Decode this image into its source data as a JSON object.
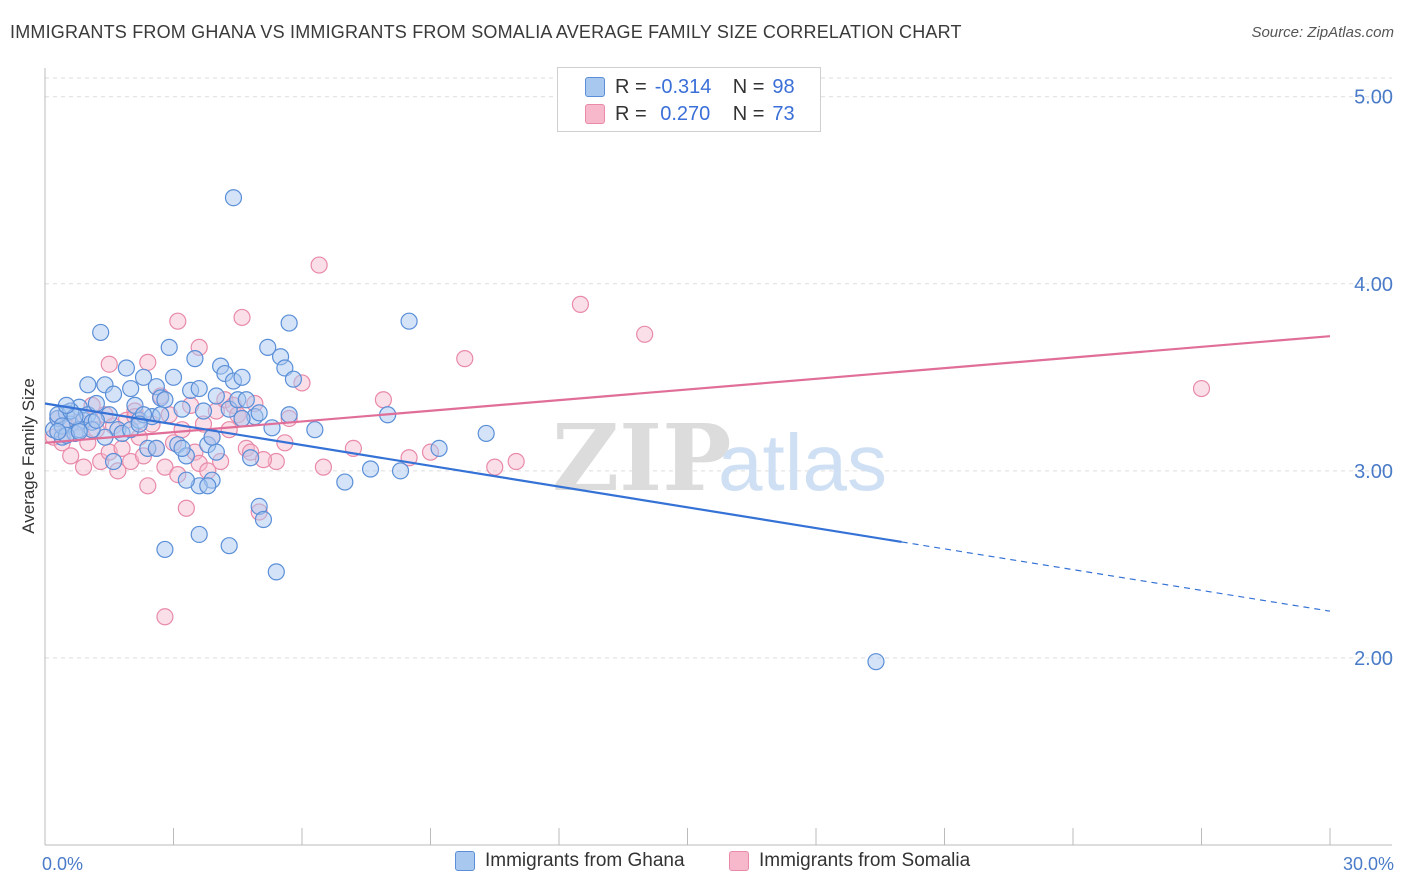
{
  "title": "IMMIGRANTS FROM GHANA VS IMMIGRANTS FROM SOMALIA AVERAGE FAMILY SIZE CORRELATION CHART",
  "source": "Source: ZipAtlas.com",
  "watermark": {
    "zip": "ZIP",
    "atlas": "atlas"
  },
  "legend": {
    "rows": [
      {
        "r_label": "R =",
        "r_value": "-0.314",
        "n_label": "N =",
        "n_value": "98"
      },
      {
        "r_label": "R =",
        "r_value": " 0.270",
        "n_label": "N =",
        "n_value": "73"
      }
    ]
  },
  "bottom_legend": {
    "ghana": "Immigrants from Ghana",
    "somalia": "Immigrants from Somalia"
  },
  "colors": {
    "ghana_fill": "#a9c8f0",
    "ghana_stroke": "#5a8fd8",
    "ghana_line": "#3572d6",
    "somalia_fill": "#f7b8cc",
    "somalia_stroke": "#e88aa8",
    "somalia_line": "#e06e98",
    "tick": "#4a7bc8"
  },
  "chart_data": {
    "type": "scatter",
    "title": "IMMIGRANTS FROM GHANA VS IMMIGRANTS FROM SOMALIA AVERAGE FAMILY SIZE CORRELATION CHART",
    "xlabel": "",
    "ylabel": "Average Family Size",
    "xlim": [
      0,
      30
    ],
    "ylim": [
      1.0,
      5.2
    ],
    "x_tick_labels": [
      {
        "value": 0,
        "label": "0.0%"
      },
      {
        "value": 30,
        "label": "30.0%"
      }
    ],
    "y_tick_labels": [
      {
        "value": 2,
        "label": "2.00"
      },
      {
        "value": 3,
        "label": "3.00"
      },
      {
        "value": 4,
        "label": "4.00"
      },
      {
        "value": 5,
        "label": "5.00"
      }
    ],
    "series": [
      {
        "name": "Immigrants from Ghana",
        "R": -0.314,
        "N": 98,
        "trend": {
          "x0": 0,
          "y0": 3.36,
          "x1": 20.0,
          "y1": 2.62,
          "dash_to_x": 30,
          "dash_to_y": 2.25
        },
        "points": [
          [
            0.2,
            3.22
          ],
          [
            0.3,
            3.28
          ],
          [
            0.4,
            3.18
          ],
          [
            0.5,
            3.31
          ],
          [
            0.6,
            3.25
          ],
          [
            0.7,
            3.2
          ],
          [
            0.8,
            3.34
          ],
          [
            0.9,
            3.27
          ],
          [
            0.3,
            3.3
          ],
          [
            0.4,
            3.24
          ],
          [
            0.6,
            3.32
          ],
          [
            0.8,
            3.22
          ],
          [
            1.0,
            3.3
          ],
          [
            1.1,
            3.26
          ],
          [
            0.5,
            3.19
          ],
          [
            0.7,
            3.29
          ],
          [
            1.0,
            3.46
          ],
          [
            1.2,
            3.36
          ],
          [
            1.3,
            3.74
          ],
          [
            1.4,
            3.46
          ],
          [
            1.5,
            3.3
          ],
          [
            1.6,
            3.41
          ],
          [
            1.7,
            3.22
          ],
          [
            1.8,
            3.2
          ],
          [
            1.9,
            3.55
          ],
          [
            2.0,
            3.22
          ],
          [
            2.1,
            3.35
          ],
          [
            2.2,
            3.27
          ],
          [
            2.3,
            3.5
          ],
          [
            2.4,
            3.12
          ],
          [
            2.5,
            3.29
          ],
          [
            2.6,
            3.45
          ],
          [
            2.7,
            3.39
          ],
          [
            2.8,
            3.38
          ],
          [
            2.9,
            3.66
          ],
          [
            3.0,
            3.5
          ],
          [
            3.1,
            3.14
          ],
          [
            3.2,
            3.33
          ],
          [
            3.3,
            3.08
          ],
          [
            3.4,
            3.43
          ],
          [
            3.5,
            3.6
          ],
          [
            3.6,
            3.44
          ],
          [
            3.7,
            3.32
          ],
          [
            3.8,
            3.14
          ],
          [
            3.9,
            2.95
          ],
          [
            4.0,
            3.1
          ],
          [
            3.2,
            3.12
          ],
          [
            3.6,
            2.92
          ],
          [
            3.3,
            2.95
          ],
          [
            2.7,
            3.3
          ],
          [
            4.1,
            3.56
          ],
          [
            4.2,
            3.52
          ],
          [
            4.3,
            3.33
          ],
          [
            4.4,
            3.48
          ],
          [
            4.5,
            3.38
          ],
          [
            4.6,
            3.5
          ],
          [
            4.7,
            3.38
          ],
          [
            4.8,
            3.07
          ],
          [
            4.9,
            3.29
          ],
          [
            5.0,
            2.81
          ],
          [
            5.1,
            2.74
          ],
          [
            5.2,
            3.66
          ],
          [
            5.3,
            3.23
          ],
          [
            5.4,
            2.46
          ],
          [
            5.5,
            3.61
          ],
          [
            5.6,
            3.55
          ],
          [
            5.7,
            3.3
          ],
          [
            5.8,
            3.49
          ],
          [
            6.3,
            3.22
          ],
          [
            7.0,
            2.94
          ],
          [
            7.6,
            3.01
          ],
          [
            8.3,
            3.0
          ],
          [
            4.3,
            2.6
          ],
          [
            3.6,
            2.66
          ],
          [
            2.8,
            2.58
          ],
          [
            5.7,
            3.79
          ],
          [
            8.5,
            3.8
          ],
          [
            8.0,
            3.3
          ],
          [
            9.2,
            3.12
          ],
          [
            10.3,
            3.2
          ],
          [
            19.4,
            1.98
          ],
          [
            3.8,
            2.92
          ],
          [
            4.4,
            4.46
          ],
          [
            2.6,
            3.12
          ],
          [
            2.3,
            3.3
          ],
          [
            1.6,
            3.05
          ],
          [
            1.4,
            3.18
          ],
          [
            1.1,
            3.22
          ],
          [
            0.8,
            3.21
          ],
          [
            1.2,
            3.27
          ],
          [
            2.0,
            3.44
          ],
          [
            2.2,
            3.25
          ],
          [
            4.0,
            3.4
          ],
          [
            3.9,
            3.18
          ],
          [
            4.6,
            3.28
          ],
          [
            5.0,
            3.31
          ],
          [
            0.3,
            3.21
          ],
          [
            0.5,
            3.35
          ]
        ]
      },
      {
        "name": "Immigrants from Somalia",
        "R": 0.27,
        "N": 73,
        "trend": {
          "x0": 0,
          "y0": 3.15,
          "x1": 30,
          "y1": 3.72
        },
        "points": [
          [
            0.2,
            3.18
          ],
          [
            0.3,
            3.28
          ],
          [
            0.4,
            3.15
          ],
          [
            0.5,
            3.24
          ],
          [
            0.6,
            3.08
          ],
          [
            0.7,
            3.2
          ],
          [
            0.8,
            3.26
          ],
          [
            0.9,
            3.02
          ],
          [
            1.0,
            3.15
          ],
          [
            1.1,
            3.35
          ],
          [
            1.2,
            3.22
          ],
          [
            1.3,
            3.05
          ],
          [
            1.4,
            3.3
          ],
          [
            1.5,
            3.1
          ],
          [
            1.6,
            3.24
          ],
          [
            1.7,
            3.0
          ],
          [
            1.8,
            3.12
          ],
          [
            1.9,
            3.27
          ],
          [
            2.0,
            3.05
          ],
          [
            2.1,
            3.32
          ],
          [
            2.2,
            3.18
          ],
          [
            2.3,
            3.08
          ],
          [
            2.4,
            2.92
          ],
          [
            2.5,
            3.25
          ],
          [
            2.6,
            3.12
          ],
          [
            2.7,
            3.4
          ],
          [
            2.8,
            3.02
          ],
          [
            2.9,
            3.3
          ],
          [
            3.0,
            3.15
          ],
          [
            3.1,
            2.98
          ],
          [
            3.2,
            3.22
          ],
          [
            3.3,
            2.8
          ],
          [
            3.4,
            3.35
          ],
          [
            3.5,
            3.1
          ],
          [
            3.6,
            3.04
          ],
          [
            3.7,
            3.25
          ],
          [
            3.8,
            3.0
          ],
          [
            3.9,
            3.18
          ],
          [
            4.0,
            3.32
          ],
          [
            4.1,
            3.05
          ],
          [
            4.2,
            3.38
          ],
          [
            4.3,
            3.22
          ],
          [
            4.4,
            3.35
          ],
          [
            4.5,
            3.3
          ],
          [
            4.6,
            3.28
          ],
          [
            4.7,
            3.12
          ],
          [
            4.8,
            3.1
          ],
          [
            4.9,
            3.36
          ],
          [
            5.0,
            2.78
          ],
          [
            5.4,
            3.05
          ],
          [
            5.6,
            3.15
          ],
          [
            5.7,
            3.28
          ],
          [
            6.0,
            3.47
          ],
          [
            6.5,
            3.02
          ],
          [
            7.2,
            3.12
          ],
          [
            7.9,
            3.38
          ],
          [
            8.5,
            3.07
          ],
          [
            9.0,
            3.1
          ],
          [
            10.5,
            3.02
          ],
          [
            11.0,
            3.05
          ],
          [
            3.1,
            3.8
          ],
          [
            3.6,
            3.66
          ],
          [
            4.6,
            3.82
          ],
          [
            6.4,
            4.1
          ],
          [
            9.8,
            3.6
          ],
          [
            12.5,
            3.89
          ],
          [
            14.0,
            3.73
          ],
          [
            27.0,
            3.44
          ],
          [
            2.8,
            2.22
          ],
          [
            1.5,
            3.57
          ],
          [
            2.4,
            3.58
          ],
          [
            5.1,
            3.06
          ],
          [
            2.1,
            3.29
          ]
        ]
      }
    ]
  }
}
